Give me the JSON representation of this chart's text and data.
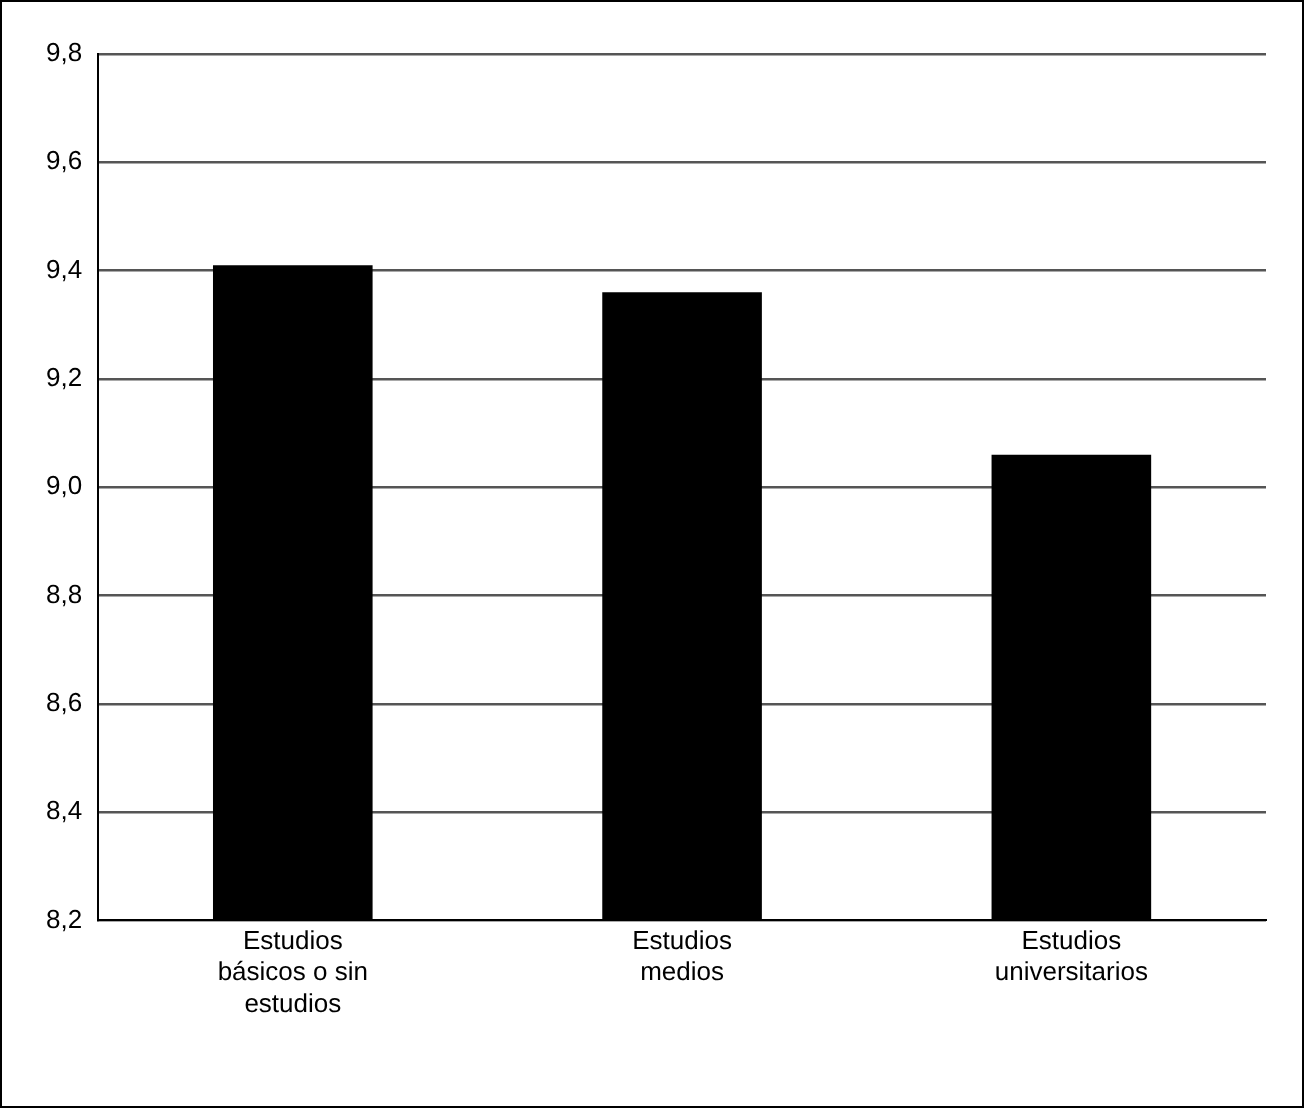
{
  "chart_data": {
    "type": "bar",
    "categories": [
      "Estudios básicos o sin estudios",
      "Estudios medios",
      "Estudios universitarios"
    ],
    "values": [
      9.41,
      9.36,
      9.06
    ],
    "color": "#000000",
    "ylim": [
      8.2,
      9.8
    ],
    "yticks": [
      {
        "value": 8.2,
        "label": "8,2"
      },
      {
        "value": 8.4,
        "label": "8,4"
      },
      {
        "value": 8.6,
        "label": "8,6"
      },
      {
        "value": 8.8,
        "label": "8,8"
      },
      {
        "value": 9.0,
        "label": "9,0"
      },
      {
        "value": 9.2,
        "label": "9,2"
      },
      {
        "value": 9.4,
        "label": "9,4"
      },
      {
        "value": 9.6,
        "label": "9,6"
      },
      {
        "value": 9.8,
        "label": "9,8"
      }
    ],
    "grid": "y",
    "legend": false
  }
}
